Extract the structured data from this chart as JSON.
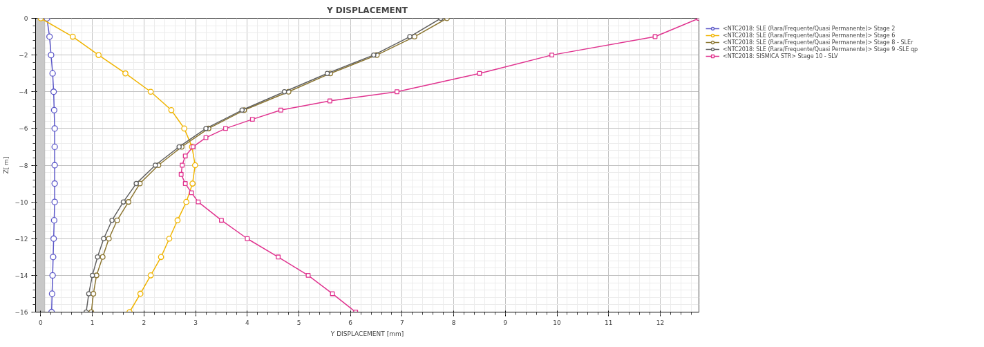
{
  "chart_data": {
    "type": "line",
    "title": "Y DISPLACEMENT",
    "xlabel": "Y DISPLACEMENT [mm]",
    "ylabel": "Z[ m]",
    "xlim": [
      -0.1,
      12.75
    ],
    "ylim": [
      -16,
      0
    ],
    "xticks": [
      0,
      1,
      2,
      3,
      4,
      5,
      6,
      7,
      8,
      9,
      10,
      11,
      12
    ],
    "yticks": [
      0,
      -2,
      -4,
      -6,
      -8,
      -10,
      -12,
      -14,
      -16
    ],
    "grid": true,
    "legend": "top right",
    "line_style": "solid",
    "bands": [
      {
        "axis": "x",
        "from": -0.1,
        "to": 0.08,
        "color": "#c8c8c8"
      }
    ],
    "series": [
      {
        "name": "<NTC2018: SLE (Rara/Frequente/Quasi Permanente)> Stage 2",
        "color": "#5b57c8",
        "marker": "circle",
        "x": [
          0.12,
          0.17,
          0.2,
          0.23,
          0.25,
          0.26,
          0.27,
          0.27,
          0.27,
          0.27,
          0.27,
          0.26,
          0.25,
          0.24,
          0.23,
          0.22,
          0.21
        ],
        "values": [
          0,
          -1,
          -2,
          -3,
          -4,
          -5,
          -6,
          -7,
          -8,
          -9,
          -10,
          -11,
          -12,
          -13,
          -14,
          -15,
          -16
        ]
      },
      {
        "name": "<NTC2018: SLE (Rara/Frequente/Quasi Permanente)> Stage 6",
        "color": "#f0b400",
        "marker": "circle",
        "x": [
          0,
          0.62,
          1.12,
          1.64,
          2.13,
          2.53,
          2.78,
          2.93,
          2.99,
          2.94,
          2.82,
          2.65,
          2.49,
          2.33,
          2.13,
          1.93,
          1.72
        ],
        "values": [
          0,
          -1,
          -2,
          -3,
          -4,
          -5,
          -6,
          -7,
          -8,
          -9,
          -10,
          -11,
          -12,
          -13,
          -14,
          -15,
          -16
        ]
      },
      {
        "name": "<NTC2018: SLE (Rara/Frequente/Quasi Permanente)> Stage 8 - SLEr",
        "color": "#8b7530",
        "marker": "circle",
        "x": [
          7.87,
          7.24,
          6.51,
          5.61,
          4.8,
          3.94,
          3.25,
          2.73,
          2.28,
          1.92,
          1.7,
          1.48,
          1.32,
          1.2,
          1.08,
          1.02,
          0.98
        ],
        "values": [
          0,
          -1,
          -2,
          -3,
          -4,
          -5,
          -6,
          -7,
          -8,
          -9,
          -10,
          -11,
          -12,
          -13,
          -14,
          -15,
          -16
        ]
      },
      {
        "name": "<NTC2018: SLE (Rara/Frequente/Quasi Permanente)> Stage 9 -SLE qp",
        "color": "#606060",
        "marker": "circle",
        "x": [
          7.75,
          7.15,
          6.45,
          5.55,
          4.72,
          3.9,
          3.2,
          2.68,
          2.22,
          1.85,
          1.6,
          1.38,
          1.22,
          1.1,
          1.0,
          0.93,
          0.88
        ],
        "values": [
          0,
          -1,
          -2,
          -3,
          -4,
          -5,
          -6,
          -7,
          -8,
          -9,
          -10,
          -11,
          -12,
          -13,
          -14,
          -15,
          -16
        ]
      },
      {
        "name": "<NTC2018: SISMICA STR> Stage 10 - SLV",
        "color": "#e0338f",
        "marker": "square",
        "x": [
          12.75,
          11.9,
          9.9,
          8.5,
          6.9,
          5.6,
          4.65,
          4.1,
          3.58,
          3.2,
          2.95,
          2.8,
          2.74,
          2.72,
          2.8,
          2.92,
          3.05,
          3.5,
          4.0,
          4.6,
          5.18,
          5.65,
          6.1
        ],
        "values": [
          0,
          -1,
          -2,
          -3,
          -4,
          -4.5,
          -5,
          -5.5,
          -6,
          -6.5,
          -7,
          -7.5,
          -8,
          -8.5,
          -9,
          -9.5,
          -10,
          -11,
          -12,
          -13,
          -14,
          -15,
          -16
        ]
      }
    ]
  }
}
